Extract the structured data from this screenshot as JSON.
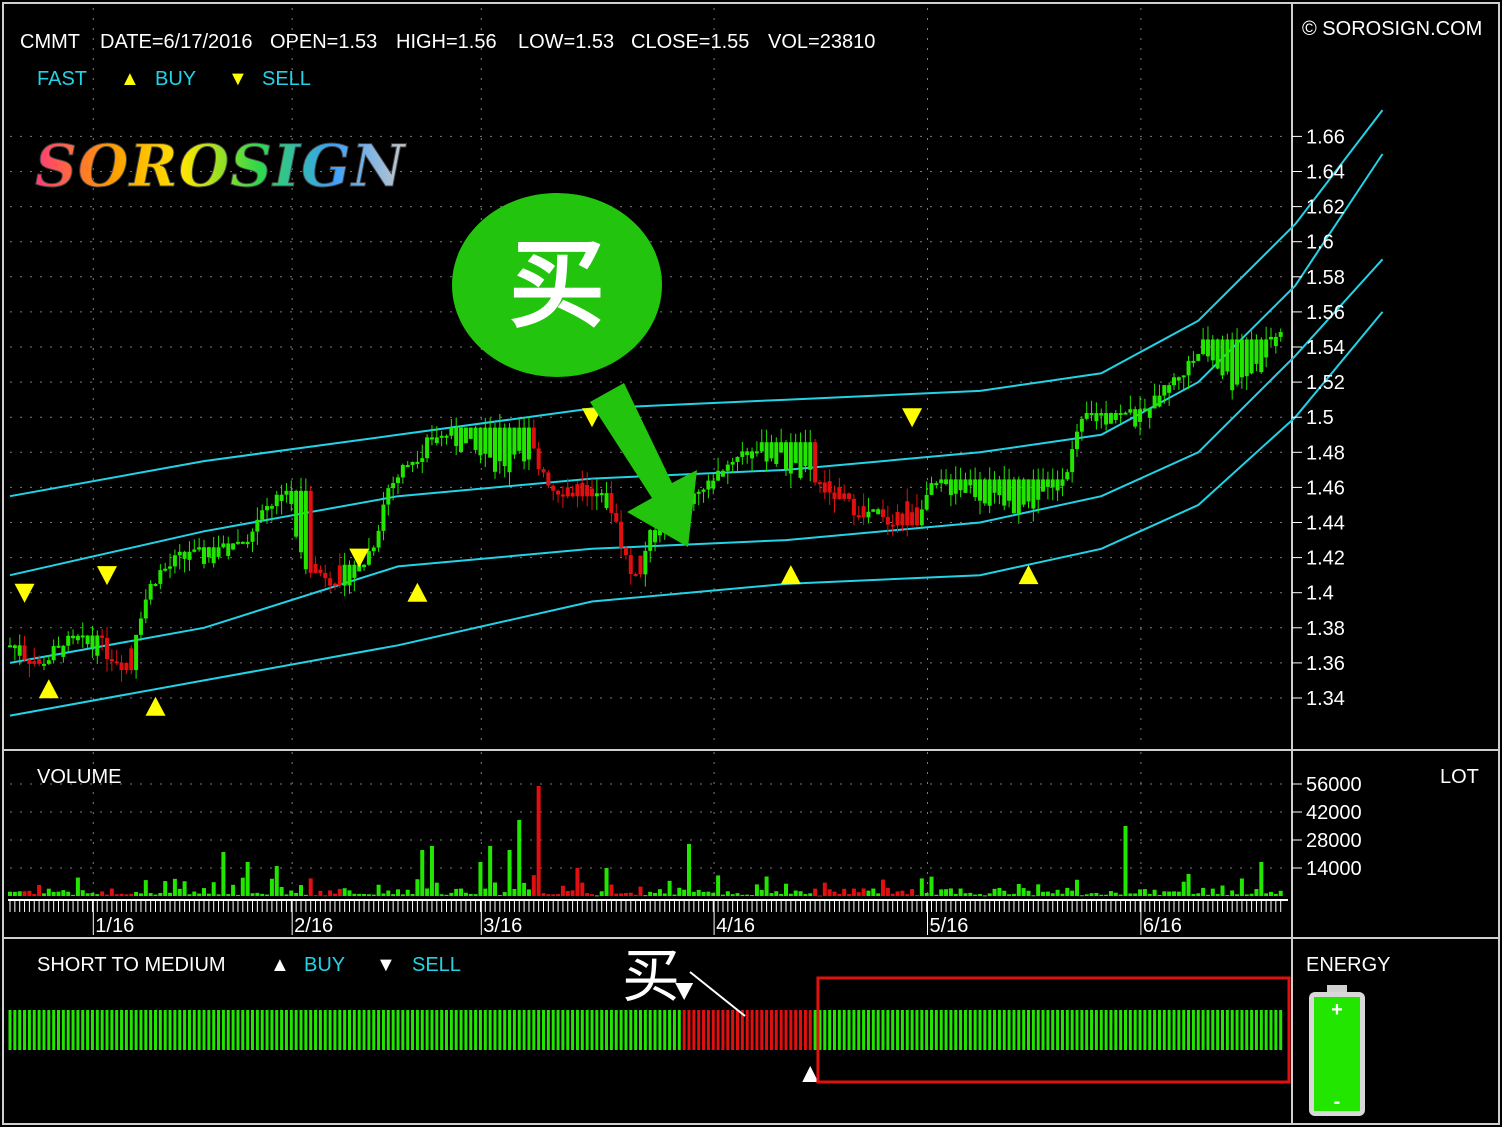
{
  "header": {
    "symbol": "CMMT",
    "date": "DATE=6/17/2016",
    "open": "OPEN=1.53",
    "high": "HIGH=1.56",
    "low": "LOW=1.53",
    "close": "CLOSE=1.55",
    "vol": "VOL=23810",
    "copyright": "© SOROSIGN.COM"
  },
  "legend": {
    "fast": "FAST",
    "buy": "BUY",
    "sell": "SELL",
    "buy_glyph": "▲",
    "sell_glyph": "▼"
  },
  "logo": {
    "text": "SOROSIGN"
  },
  "annotation": {
    "bubble_text": "买",
    "small_text": "买"
  },
  "volume_panel": {
    "label": "VOLUME",
    "unit": "LOT"
  },
  "indicator_panel": {
    "label": "SHORT TO MEDIUM",
    "buy": "BUY",
    "sell": "SELL",
    "energy_label": "ENERGY"
  },
  "colors": {
    "up": "#22e600",
    "down": "#e01010",
    "band": "#22d3e6",
    "signal": "#ffff00",
    "annotation_green": "#22c40e",
    "highlight_box": "#e01010"
  },
  "chart_data": {
    "type": "candlestick",
    "price_axis": {
      "ticks": [
        1.34,
        1.36,
        1.38,
        1.4,
        1.42,
        1.44,
        1.46,
        1.48,
        1.5,
        1.52,
        1.54,
        1.56,
        1.58,
        1.6,
        1.62,
        1.64,
        1.66
      ],
      "tick_labels": [
        "1.34",
        "1.36",
        "1.38",
        "1.4",
        "1.42",
        "1.44",
        "1.46",
        "1.48",
        "1.5",
        "1.52",
        "1.54",
        "1.56",
        "1.58",
        "1.6",
        "1.62",
        "1.64",
        "1.66"
      ],
      "ylim": [
        1.325,
        1.7
      ]
    },
    "volume_axis": {
      "ticks": [
        14000,
        28000,
        42000,
        56000
      ],
      "tick_labels": [
        "14000",
        "28000",
        "42000",
        "56000"
      ],
      "ylim": [
        0,
        62000
      ]
    },
    "date_labels": [
      {
        "label": "1/16",
        "index": 18
      },
      {
        "label": "2/16",
        "index": 59
      },
      {
        "label": "3/16",
        "index": 98
      },
      {
        "label": "4/16",
        "index": 146
      },
      {
        "label": "5/16",
        "index": 190
      },
      {
        "label": "6/16",
        "index": 234
      }
    ],
    "num_bars": 263,
    "grid": true,
    "price_anchors": [
      [
        0,
        1.37
      ],
      [
        6,
        1.36
      ],
      [
        12,
        1.37
      ],
      [
        18,
        1.37
      ],
      [
        24,
        1.36
      ],
      [
        27,
        1.39
      ],
      [
        30,
        1.41
      ],
      [
        36,
        1.42
      ],
      [
        42,
        1.42
      ],
      [
        48,
        1.43
      ],
      [
        54,
        1.45
      ],
      [
        57,
        1.46
      ],
      [
        60,
        1.42
      ],
      [
        66,
        1.41
      ],
      [
        72,
        1.41
      ],
      [
        75,
        1.43
      ],
      [
        78,
        1.46
      ],
      [
        84,
        1.48
      ],
      [
        90,
        1.49
      ],
      [
        96,
        1.48
      ],
      [
        102,
        1.47
      ],
      [
        108,
        1.48
      ],
      [
        112,
        1.46
      ],
      [
        118,
        1.46
      ],
      [
        124,
        1.45
      ],
      [
        128,
        1.41
      ],
      [
        132,
        1.43
      ],
      [
        138,
        1.45
      ],
      [
        144,
        1.46
      ],
      [
        150,
        1.48
      ],
      [
        156,
        1.48
      ],
      [
        162,
        1.47
      ],
      [
        168,
        1.46
      ],
      [
        174,
        1.45
      ],
      [
        180,
        1.44
      ],
      [
        186,
        1.45
      ],
      [
        192,
        1.46
      ],
      [
        198,
        1.46
      ],
      [
        204,
        1.45
      ],
      [
        210,
        1.45
      ],
      [
        216,
        1.46
      ],
      [
        222,
        1.5
      ],
      [
        228,
        1.5
      ],
      [
        234,
        1.5
      ],
      [
        240,
        1.52
      ],
      [
        246,
        1.54
      ],
      [
        252,
        1.52
      ],
      [
        258,
        1.53
      ],
      [
        262,
        1.55
      ]
    ],
    "red_ranges": [
      [
        3,
        6
      ],
      [
        19,
        25
      ],
      [
        62,
        68
      ],
      [
        108,
        120
      ],
      [
        124,
        130
      ],
      [
        166,
        176
      ],
      [
        180,
        187
      ]
    ],
    "volume_spikes": [
      [
        44,
        22000
      ],
      [
        49,
        17000
      ],
      [
        55,
        15000
      ],
      [
        85,
        23000
      ],
      [
        87,
        25000
      ],
      [
        97,
        17000
      ],
      [
        99,
        25000
      ],
      [
        103,
        23000
      ],
      [
        105,
        38000
      ],
      [
        109,
        55000
      ],
      [
        117,
        14000
      ],
      [
        123,
        14000
      ],
      [
        140,
        26000
      ],
      [
        230,
        35000
      ],
      [
        243,
        11000
      ],
      [
        258,
        17000
      ]
    ],
    "bands": [
      {
        "name": "upper_outer",
        "points": [
          [
            0,
            1.455
          ],
          [
            40,
            1.475
          ],
          [
            80,
            1.49
          ],
          [
            120,
            1.505
          ],
          [
            160,
            1.51
          ],
          [
            200,
            1.515
          ],
          [
            225,
            1.525
          ],
          [
            245,
            1.555
          ],
          [
            265,
            1.61
          ],
          [
            283,
            1.675
          ]
        ]
      },
      {
        "name": "upper_inner",
        "points": [
          [
            0,
            1.41
          ],
          [
            40,
            1.435
          ],
          [
            80,
            1.455
          ],
          [
            120,
            1.465
          ],
          [
            160,
            1.47
          ],
          [
            200,
            1.48
          ],
          [
            225,
            1.49
          ],
          [
            245,
            1.52
          ],
          [
            265,
            1.575
          ],
          [
            283,
            1.65
          ]
        ]
      },
      {
        "name": "lower_inner",
        "points": [
          [
            0,
            1.36
          ],
          [
            40,
            1.38
          ],
          [
            80,
            1.415
          ],
          [
            120,
            1.425
          ],
          [
            160,
            1.43
          ],
          [
            200,
            1.44
          ],
          [
            225,
            1.455
          ],
          [
            245,
            1.48
          ],
          [
            265,
            1.535
          ],
          [
            283,
            1.59
          ]
        ]
      },
      {
        "name": "lower_outer",
        "points": [
          [
            0,
            1.33
          ],
          [
            40,
            1.35
          ],
          [
            80,
            1.37
          ],
          [
            120,
            1.395
          ],
          [
            160,
            1.405
          ],
          [
            200,
            1.41
          ],
          [
            225,
            1.425
          ],
          [
            245,
            1.45
          ],
          [
            265,
            1.5
          ],
          [
            283,
            1.56
          ]
        ]
      }
    ],
    "signals": [
      {
        "type": "sell",
        "index": 3,
        "price": 1.4
      },
      {
        "type": "buy",
        "index": 8,
        "price": 1.345
      },
      {
        "type": "sell",
        "index": 20,
        "price": 1.41
      },
      {
        "type": "buy",
        "index": 30,
        "price": 1.335
      },
      {
        "type": "sell",
        "index": 72,
        "price": 1.42
      },
      {
        "type": "buy",
        "index": 84,
        "price": 1.4
      },
      {
        "type": "sell",
        "index": 120,
        "price": 1.5
      },
      {
        "type": "buy",
        "index": 161,
        "price": 1.41
      },
      {
        "type": "sell",
        "index": 186,
        "price": 1.5
      },
      {
        "type": "buy",
        "index": 210,
        "price": 1.41
      }
    ],
    "indicator": {
      "red_start": 139,
      "red_end": 165,
      "sell_marker_index": 139,
      "buy_marker_index": 165,
      "highlight_start": 167,
      "highlight_end": 262
    },
    "energy_level": 1.0
  }
}
